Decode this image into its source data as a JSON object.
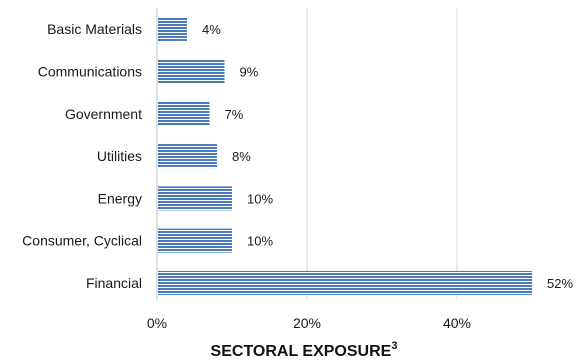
{
  "chart_data": {
    "type": "bar",
    "orientation": "horizontal",
    "title": "SECTORAL EXPOSURE",
    "title_superscript": "3",
    "categories": [
      "Basic Materials",
      "Communications",
      "Government",
      "Utilities",
      "Energy",
      "Consumer, Cyclical",
      "Financial"
    ],
    "values": [
      4,
      9,
      7,
      8,
      10,
      10,
      52
    ],
    "data_labels": [
      "4%",
      "9%",
      "7%",
      "8%",
      "10%",
      "10%",
      "52%"
    ],
    "xlim": [
      0,
      50
    ],
    "x_ticks": [
      0,
      20,
      40
    ],
    "x_tick_labels": [
      "0%",
      "20%",
      "40%"
    ],
    "xlabel": "",
    "ylabel": "",
    "grid": "vertical",
    "legend": "none",
    "bar_color": "#4a7ab8",
    "bar_stripe_color": "#ffffff",
    "grid_color": "#d9d9d9"
  }
}
